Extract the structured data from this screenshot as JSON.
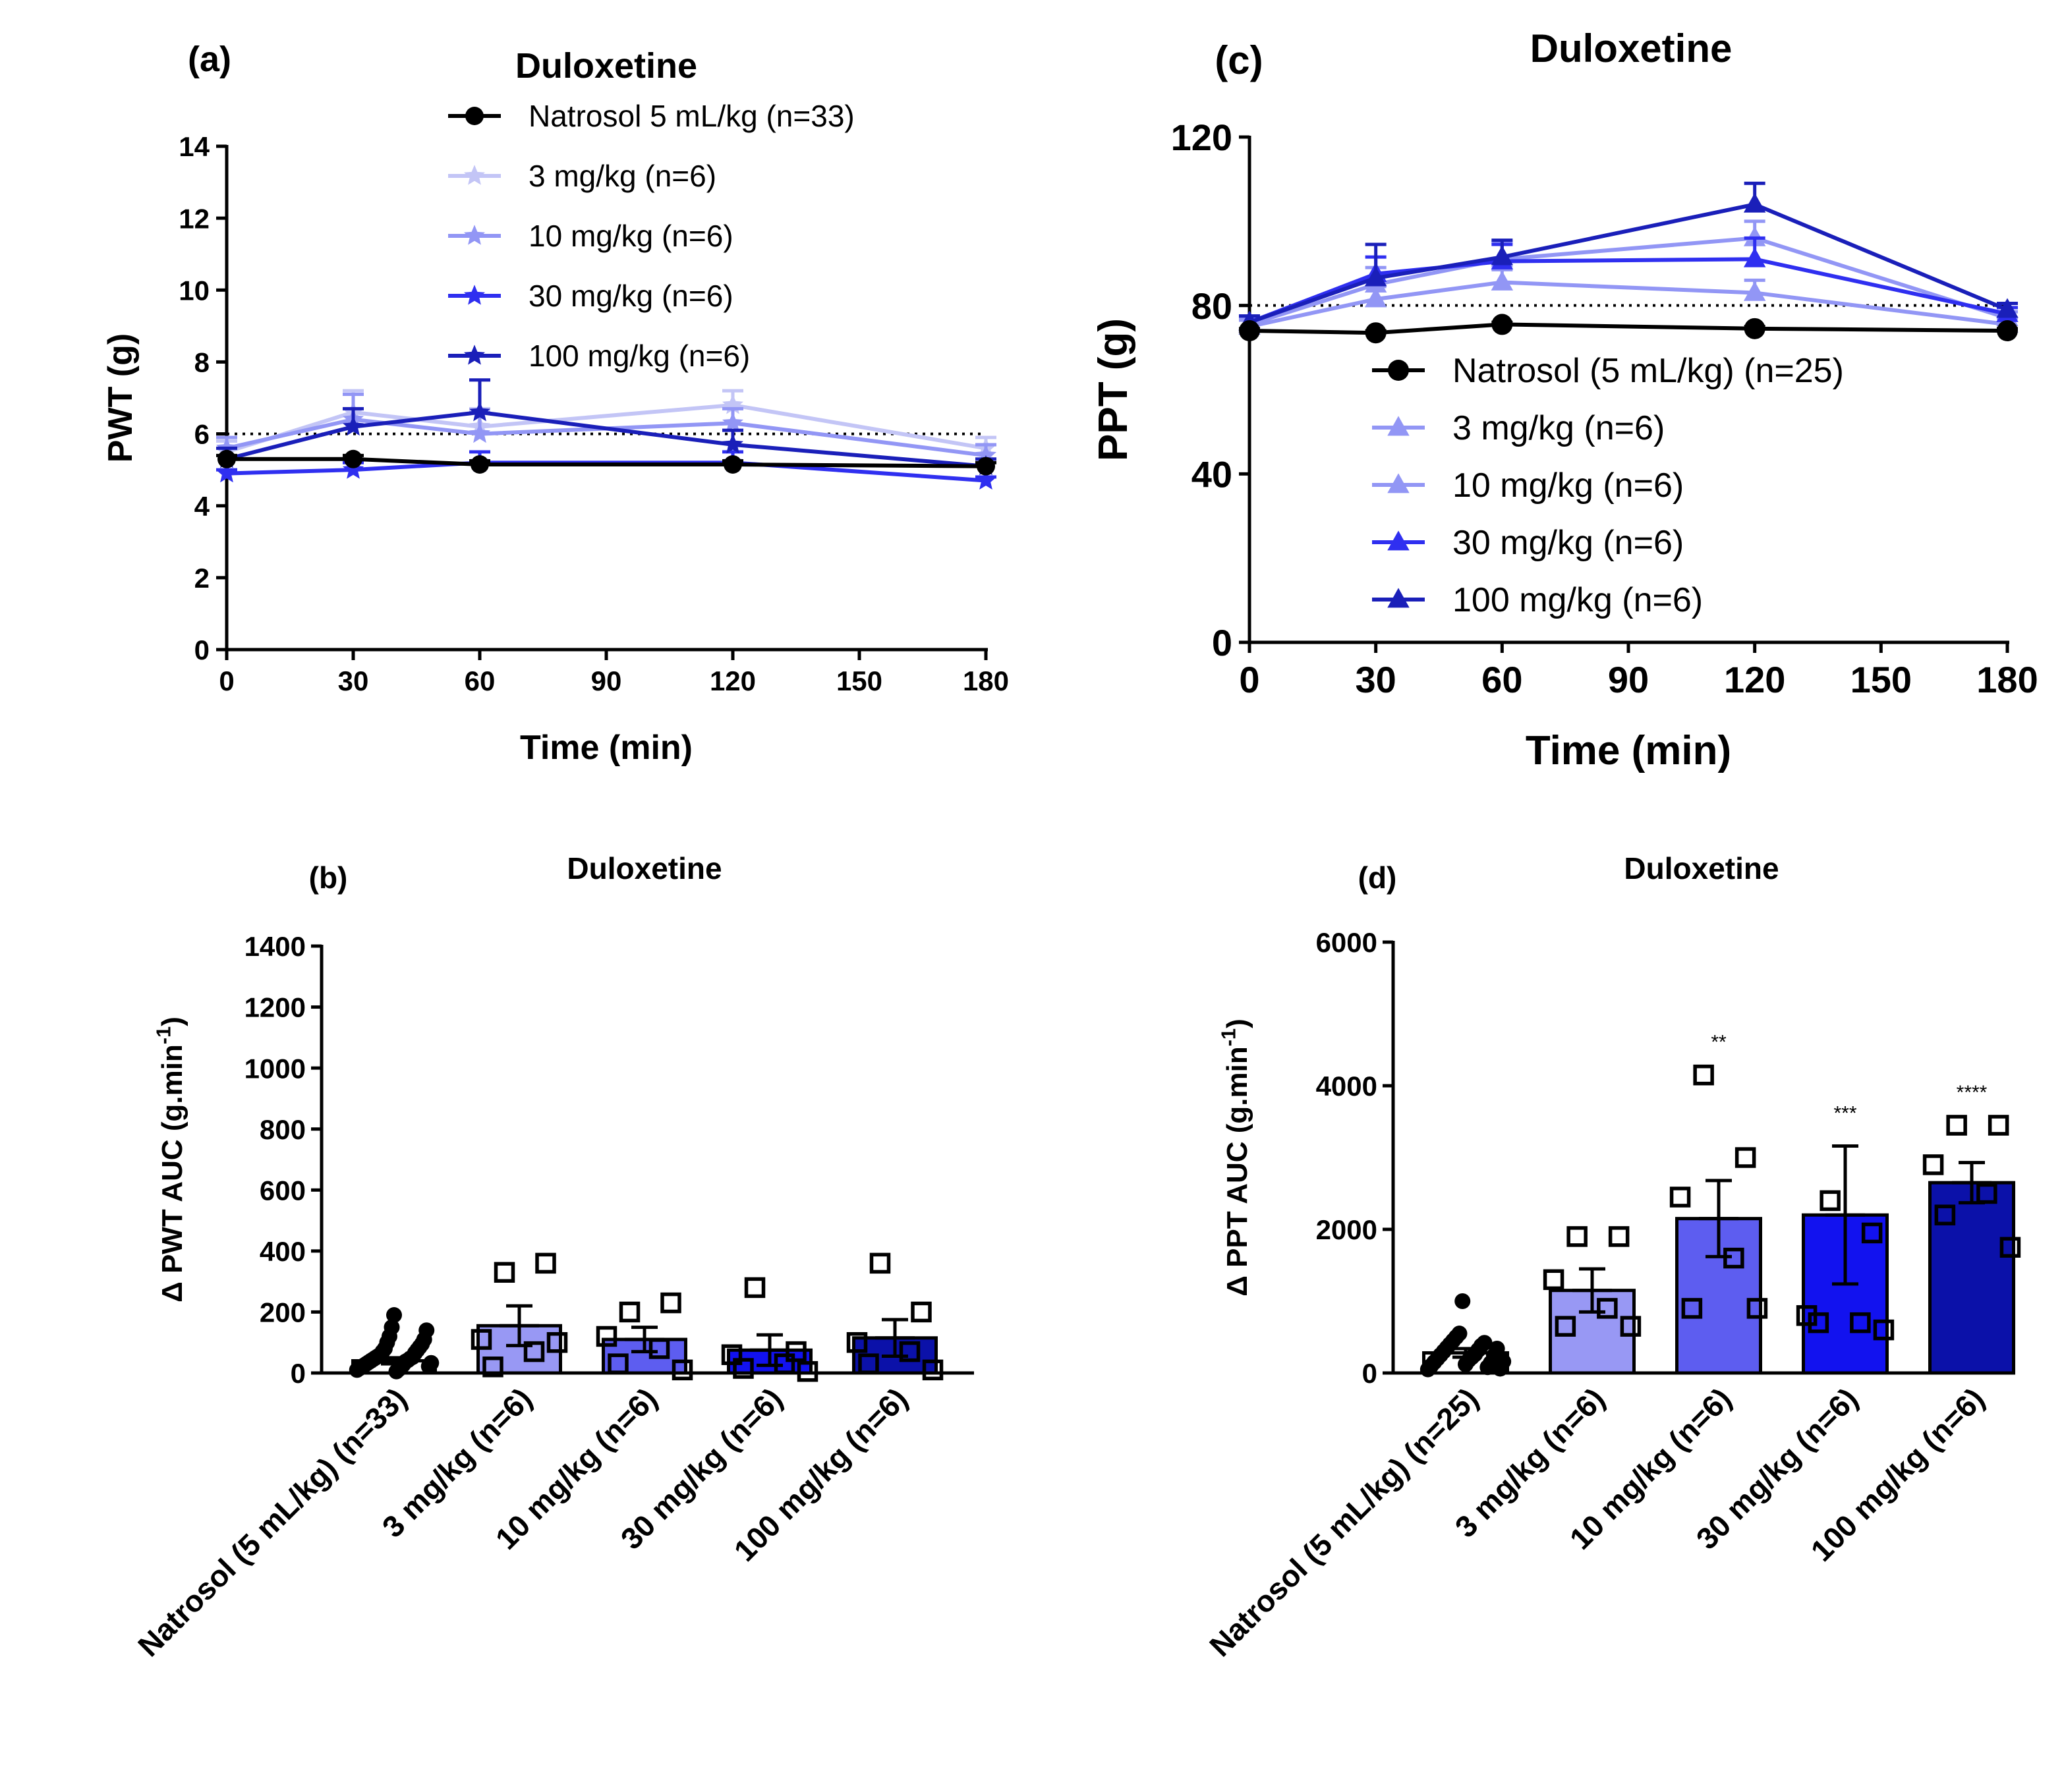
{
  "colors": {
    "natrosol": "#000000",
    "d3": "#c3c5f6",
    "d10": "#9296f5",
    "d30": "#2f2ff0",
    "d100": "#1a1fb9",
    "bar_natrosol": "#ffffff",
    "bar_d3": "#9898f4",
    "bar_d10": "#5d5df0",
    "bar_d30": "#1212ef",
    "bar_d100": "#0b11a9"
  },
  "chart_data": [
    {
      "id": "a",
      "panel_label": "(a)",
      "type": "line",
      "title": "Duloxetine",
      "xlabel": "Time (min)",
      "ylabel": "PWT (g)",
      "xlim": [
        0,
        180
      ],
      "ylim": [
        0,
        14
      ],
      "xticks": [
        "0",
        "30",
        "60",
        "90",
        "120",
        "150",
        "180"
      ],
      "yticks": [
        "0",
        "2",
        "4",
        "6",
        "8",
        "10",
        "12",
        "14"
      ],
      "reference_line": 6,
      "legend_position": "top-center",
      "x": [
        0,
        30,
        60,
        120,
        180
      ],
      "series": [
        {
          "name": "Natrosol 5 mL/kg (n=33)",
          "marker": "circle",
          "color_key": "natrosol",
          "values": [
            5.3,
            5.3,
            5.15,
            5.15,
            5.1
          ],
          "errors": [
            0.1,
            0.1,
            0.1,
            0.1,
            0.1
          ]
        },
        {
          "name": "3 mg/kg (n=6)",
          "marker": "star",
          "color_key": "d3",
          "values": [
            5.5,
            6.6,
            6.2,
            6.8,
            5.6
          ],
          "errors": [
            0.3,
            0.6,
            0.5,
            0.4,
            0.3
          ]
        },
        {
          "name": "10 mg/kg (n=6)",
          "marker": "star",
          "color_key": "d10",
          "values": [
            5.6,
            6.4,
            6.0,
            6.3,
            5.4
          ],
          "errors": [
            0.3,
            0.7,
            0.6,
            0.4,
            0.3
          ]
        },
        {
          "name": "30 mg/kg (n=6)",
          "marker": "star",
          "color_key": "d30",
          "values": [
            4.9,
            5.0,
            5.2,
            5.2,
            4.7
          ],
          "errors": [
            0.1,
            0.2,
            0.3,
            0.3,
            0.1
          ]
        },
        {
          "name": "100 mg/kg (n=6)",
          "marker": "star",
          "color_key": "d100",
          "values": [
            5.3,
            6.2,
            6.6,
            5.7,
            5.1
          ],
          "errors": [
            0.3,
            0.5,
            0.9,
            0.4,
            0.2
          ]
        }
      ]
    },
    {
      "id": "b",
      "panel_label": "(b)",
      "type": "bar",
      "title": "Duloxetine",
      "ylabel": "Δ PWT AUC (g.min",
      "ylabel_sup": "-1",
      "ylabel_close": ")",
      "ylim": [
        0,
        1400
      ],
      "yticks": [
        "0",
        "200",
        "400",
        "600",
        "800",
        "1000",
        "1200",
        "1400"
      ],
      "categories": [
        "Natrosol (5 mL/kg) (n=33)",
        "3 mg/kg (n=6)",
        "10 mg/kg (n=6)",
        "30 mg/kg (n=6)",
        "100 mg/kg (n=6)"
      ],
      "values": [
        40,
        155,
        110,
        75,
        115
      ],
      "errors": [
        10,
        65,
        40,
        50,
        60
      ],
      "significance": [
        "",
        "",
        "",
        "",
        ""
      ],
      "bar_color_keys": [
        "bar_natrosol",
        "bar_d3",
        "bar_d10",
        "bar_d30",
        "bar_d100"
      ],
      "points": [
        [
          10,
          15,
          20,
          25,
          30,
          35,
          40,
          45,
          50,
          55,
          60,
          70,
          80,
          100,
          120,
          150,
          190,
          5,
          12,
          18,
          28,
          38,
          42,
          48,
          52,
          65,
          75,
          85,
          95,
          110,
          140,
          22,
          33
        ],
        [
          330,
          360,
          110,
          70,
          20,
          100
        ],
        [
          200,
          230,
          120,
          80,
          30,
          10
        ],
        [
          280,
          70,
          60,
          30,
          15,
          5
        ],
        [
          360,
          200,
          100,
          70,
          30,
          10
        ]
      ]
    },
    {
      "id": "c",
      "panel_label": "(c)",
      "type": "line",
      "title": "Duloxetine",
      "xlabel": "Time (min)",
      "ylabel": "PPT (g)",
      "xlim": [
        0,
        180
      ],
      "ylim": [
        0,
        120
      ],
      "xticks": [
        "0",
        "30",
        "60",
        "90",
        "120",
        "150",
        "180"
      ],
      "yticks": [
        "0",
        "40",
        "80",
        "120"
      ],
      "reference_line": 80,
      "legend_position": "bottom-right",
      "x": [
        0,
        30,
        60,
        120,
        180
      ],
      "series": [
        {
          "name": "Natrosol (5 mL/kg) (n=25)",
          "marker": "circle",
          "color_key": "natrosol",
          "values": [
            74,
            73.5,
            75.5,
            74.5,
            74
          ],
          "errors": [
            0.5,
            0.5,
            0.5,
            0.5,
            0.5
          ]
        },
        {
          "name": "3 mg/kg (n=6)",
          "marker": "triangle",
          "color_key": "d10",
          "values": [
            75,
            81.5,
            85.5,
            83,
            75.5
          ],
          "errors": [
            1.5,
            3,
            3,
            3,
            1.5
          ]
        },
        {
          "name": "10 mg/kg (n=6)",
          "marker": "triangle",
          "color_key": "d10",
          "values": [
            75.5,
            85,
            91,
            96,
            77
          ],
          "errors": [
            1.5,
            4,
            4,
            4,
            1.5
          ]
        },
        {
          "name": "30 mg/kg (n=6)",
          "marker": "triangle",
          "color_key": "d30",
          "values": [
            76,
            87.5,
            90.5,
            91,
            78
          ],
          "errors": [
            1.5,
            4,
            4,
            5,
            1.5
          ]
        },
        {
          "name": "100 mg/kg (n=6)",
          "marker": "triangle",
          "color_key": "d100",
          "values": [
            76,
            86.5,
            91.5,
            104,
            79
          ],
          "errors": [
            1.5,
            8,
            4,
            5,
            1.5
          ]
        }
      ]
    },
    {
      "id": "d",
      "panel_label": "(d)",
      "type": "bar",
      "title": "Duloxetine",
      "ylabel": "Δ PPT AUC (g.min",
      "ylabel_sup": "-1",
      "ylabel_close": ")",
      "ylim": [
        0,
        6000
      ],
      "yticks": [
        "0",
        "2000",
        "4000",
        "6000"
      ],
      "categories": [
        "Natrosol (5 mL/kg) (n=25)",
        "3 mg/kg (n=6)",
        "10 mg/kg (n=6)",
        "30 mg/kg (n=6)",
        "100 mg/kg (n=6)"
      ],
      "values": [
        280,
        1150,
        2150,
        2200,
        2650
      ],
      "errors": [
        60,
        300,
        530,
        960,
        280
      ],
      "significance": [
        "",
        "",
        "**",
        "***",
        "****"
      ],
      "bar_color_keys": [
        "bar_natrosol",
        "bar_d3",
        "bar_d10",
        "bar_d30",
        "bar_d100"
      ],
      "points": [
        [
          50,
          100,
          150,
          200,
          250,
          300,
          350,
          400,
          450,
          500,
          550,
          1000,
          120,
          180,
          220,
          260,
          320,
          380,
          420,
          80,
          140,
          240,
          340,
          60,
          160
        ],
        [
          1900,
          1900,
          1300,
          900,
          650,
          650
        ],
        [
          4150,
          3000,
          2450,
          1600,
          900,
          900
        ],
        [
          2400,
          1950,
          800,
          700,
          700,
          600
        ],
        [
          3450,
          3450,
          2900,
          2500,
          2200,
          1750
        ]
      ]
    }
  ]
}
